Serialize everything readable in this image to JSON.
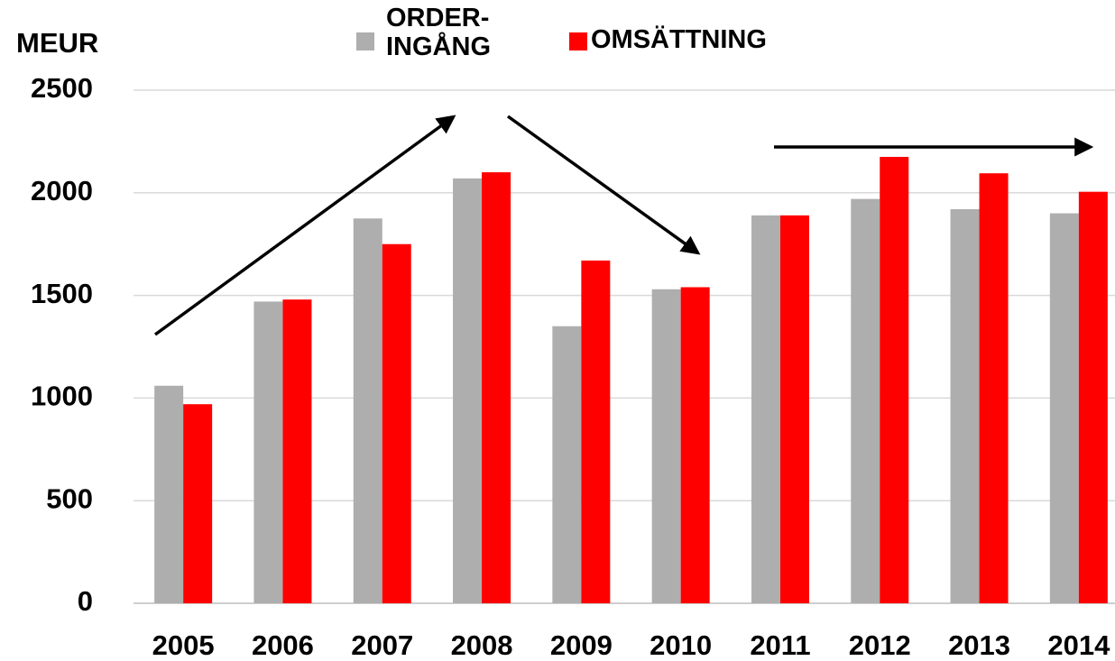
{
  "chart_data": {
    "type": "bar",
    "y_label": "MEUR",
    "categories": [
      "2005",
      "2006",
      "2007",
      "2008",
      "2009",
      "2010",
      "2011",
      "2012",
      "2013",
      "2014"
    ],
    "series": [
      {
        "name": "ORDER- INGÅNG",
        "color": "#aeaeae",
        "values": [
          1060,
          1470,
          1875,
          2070,
          1350,
          1530,
          1890,
          1970,
          1920,
          1900
        ]
      },
      {
        "name": "OMSÄTTNING",
        "color": "#ff0000",
        "values": [
          970,
          1480,
          1750,
          2100,
          1670,
          1540,
          1890,
          2175,
          2095,
          2005
        ]
      }
    ],
    "ylim": [
      0,
      2500
    ],
    "yticks": [
      0,
      500,
      1000,
      1500,
      2000,
      2500
    ],
    "grid": true
  }
}
